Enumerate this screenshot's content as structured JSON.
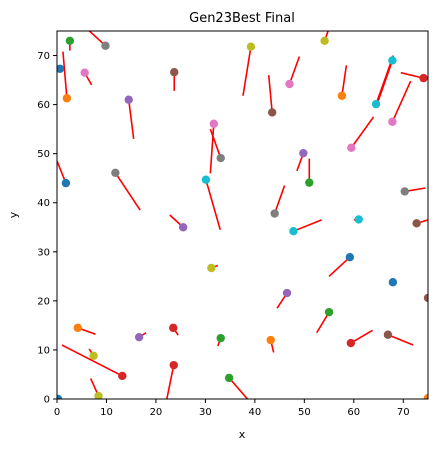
{
  "chart_data": {
    "type": "scatter",
    "title": "Gen23Best Final",
    "xlabel": "x",
    "ylabel": "y",
    "xlim": [
      0,
      75
    ],
    "ylim": [
      0,
      75
    ],
    "xticks": [
      0,
      10,
      20,
      30,
      40,
      50,
      60,
      70
    ],
    "yticks": [
      0,
      10,
      20,
      30,
      40,
      50,
      60,
      70
    ],
    "grid": false,
    "heading_color": "#ff0000",
    "palette": [
      "#1f77b4",
      "#ff7f0e",
      "#2ca02c",
      "#d62728",
      "#9467bd",
      "#8c564b",
      "#e377c2",
      "#7f7f7f",
      "#bcbd22",
      "#17becf"
    ],
    "points": [
      {
        "x": 0.2,
        "y": 0.0,
        "color": "#1f77b4"
      },
      {
        "x": 0.6,
        "y": 67.3,
        "color": "#1f77b4"
      },
      {
        "x": 1.8,
        "y": 44.0,
        "color": "#1f77b4",
        "tail": [
          0.0,
          48.5
        ]
      },
      {
        "x": 2.0,
        "y": 61.3,
        "color": "#ff7f0e",
        "tail": [
          1.2,
          70.8
        ]
      },
      {
        "x": 2.6,
        "y": 73.0,
        "color": "#2ca02c",
        "tail": [
          2.6,
          71.0
        ]
      },
      {
        "x": 5.6,
        "y": 66.5,
        "color": "#e377c2",
        "tail": [
          7.0,
          64.0
        ]
      },
      {
        "x": 4.2,
        "y": 14.5,
        "color": "#ff7f0e",
        "tail": [
          7.8,
          13.2
        ]
      },
      {
        "x": 7.4,
        "y": 8.8,
        "color": "#bcbd22",
        "tail": [
          6.5,
          10.2
        ]
      },
      {
        "x": 8.4,
        "y": 0.6,
        "color": "#bcbd22",
        "tail": [
          6.8,
          4.2
        ]
      },
      {
        "x": 9.8,
        "y": 72.0,
        "color": "#7f7f7f",
        "tail": [
          6.0,
          75.5
        ]
      },
      {
        "x": 13.2,
        "y": 4.7,
        "color": "#d62728",
        "tail": [
          1.0,
          11.0
        ]
      },
      {
        "x": 11.8,
        "y": 46.1,
        "color": "#7f7f7f",
        "tail": [
          16.8,
          38.5
        ]
      },
      {
        "x": 14.5,
        "y": 61.0,
        "color": "#9467bd",
        "tail": [
          15.5,
          53.0
        ]
      },
      {
        "x": 16.6,
        "y": 12.6,
        "color": "#9467bd",
        "tail": [
          18.0,
          13.5
        ]
      },
      {
        "x": 23.6,
        "y": 6.9,
        "color": "#d62728",
        "tail": [
          22.2,
          0.0
        ]
      },
      {
        "x": 23.5,
        "y": 14.5,
        "color": "#d62728",
        "tail": [
          24.5,
          13.0
        ]
      },
      {
        "x": 23.7,
        "y": 66.6,
        "color": "#8c564b",
        "tail": [
          23.7,
          62.8
        ]
      },
      {
        "x": 25.5,
        "y": 35.0,
        "color": "#9467bd",
        "tail": [
          22.8,
          37.5
        ]
      },
      {
        "x": 30.1,
        "y": 44.7,
        "color": "#17becf",
        "tail": [
          33.0,
          34.5
        ]
      },
      {
        "x": 31.2,
        "y": 26.7,
        "color": "#bcbd22",
        "tail": [
          32.5,
          27.2
        ]
      },
      {
        "x": 31.7,
        "y": 56.1,
        "color": "#e377c2",
        "tail": [
          31.0,
          46.0
        ]
      },
      {
        "x": 33.1,
        "y": 49.1,
        "color": "#7f7f7f",
        "tail": [
          31.0,
          55.0
        ]
      },
      {
        "x": 33.1,
        "y": 12.4,
        "color": "#2ca02c",
        "tail": [
          32.5,
          10.8
        ]
      },
      {
        "x": 34.8,
        "y": 4.3,
        "color": "#2ca02c",
        "tail": [
          38.5,
          0.0
        ]
      },
      {
        "x": 39.2,
        "y": 71.8,
        "color": "#bcbd22",
        "tail": [
          37.6,
          61.8
        ]
      },
      {
        "x": 43.2,
        "y": 12.0,
        "color": "#ff7f0e",
        "tail": [
          43.8,
          9.5
        ]
      },
      {
        "x": 43.5,
        "y": 58.4,
        "color": "#8c564b",
        "tail": [
          42.8,
          66.0
        ]
      },
      {
        "x": 44.0,
        "y": 37.8,
        "color": "#7f7f7f",
        "tail": [
          46.0,
          43.5
        ]
      },
      {
        "x": 46.5,
        "y": 21.6,
        "color": "#9467bd",
        "tail": [
          44.5,
          18.5
        ]
      },
      {
        "x": 47.0,
        "y": 64.2,
        "color": "#e377c2",
        "tail": [
          49.0,
          69.8
        ]
      },
      {
        "x": 47.8,
        "y": 34.2,
        "color": "#17becf",
        "tail": [
          53.5,
          36.5
        ]
      },
      {
        "x": 49.8,
        "y": 50.1,
        "color": "#9467bd",
        "tail": [
          48.5,
          46.5
        ]
      },
      {
        "x": 51.0,
        "y": 44.1,
        "color": "#2ca02c",
        "tail": [
          51.0,
          49.0
        ]
      },
      {
        "x": 54.1,
        "y": 73.0,
        "color": "#bcbd22",
        "tail": [
          54.8,
          75.0
        ]
      },
      {
        "x": 55.0,
        "y": 17.7,
        "color": "#2ca02c",
        "tail": [
          52.5,
          13.5
        ]
      },
      {
        "x": 57.6,
        "y": 61.8,
        "color": "#ff7f0e",
        "tail": [
          58.5,
          68.0
        ]
      },
      {
        "x": 59.2,
        "y": 28.9,
        "color": "#1f77b4",
        "tail": [
          55.0,
          25.0
        ]
      },
      {
        "x": 59.4,
        "y": 11.4,
        "color": "#d62728",
        "tail": [
          63.8,
          14.0
        ]
      },
      {
        "x": 59.5,
        "y": 51.2,
        "color": "#e377c2",
        "tail": [
          64.0,
          57.5
        ]
      },
      {
        "x": 61.0,
        "y": 36.6,
        "color": "#17becf",
        "tail": [
          60.0,
          36.5
        ]
      },
      {
        "x": 64.5,
        "y": 60.1,
        "color": "#17becf",
        "tail": [
          68.0,
          70.0
        ]
      },
      {
        "x": 66.9,
        "y": 13.1,
        "color": "#8c564b",
        "tail": [
          72.0,
          11.0
        ]
      },
      {
        "x": 67.8,
        "y": 69.0,
        "color": "#17becf",
        "tail": [
          64.5,
          59.5
        ]
      },
      {
        "x": 67.8,
        "y": 56.5,
        "color": "#e377c2",
        "tail": [
          71.5,
          64.8
        ]
      },
      {
        "x": 67.9,
        "y": 23.8,
        "color": "#1f77b4"
      },
      {
        "x": 70.3,
        "y": 42.3,
        "color": "#7f7f7f",
        "tail": [
          74.5,
          43.0
        ]
      },
      {
        "x": 72.7,
        "y": 35.8,
        "color": "#8c564b",
        "tail": [
          75.0,
          36.5
        ]
      },
      {
        "x": 74.1,
        "y": 65.4,
        "color": "#d62728",
        "tail": [
          69.5,
          66.5
        ]
      },
      {
        "x": 75.0,
        "y": 20.6,
        "color": "#8c564b"
      },
      {
        "x": 75.0,
        "y": 0.2,
        "color": "#ff7f0e"
      }
    ]
  }
}
